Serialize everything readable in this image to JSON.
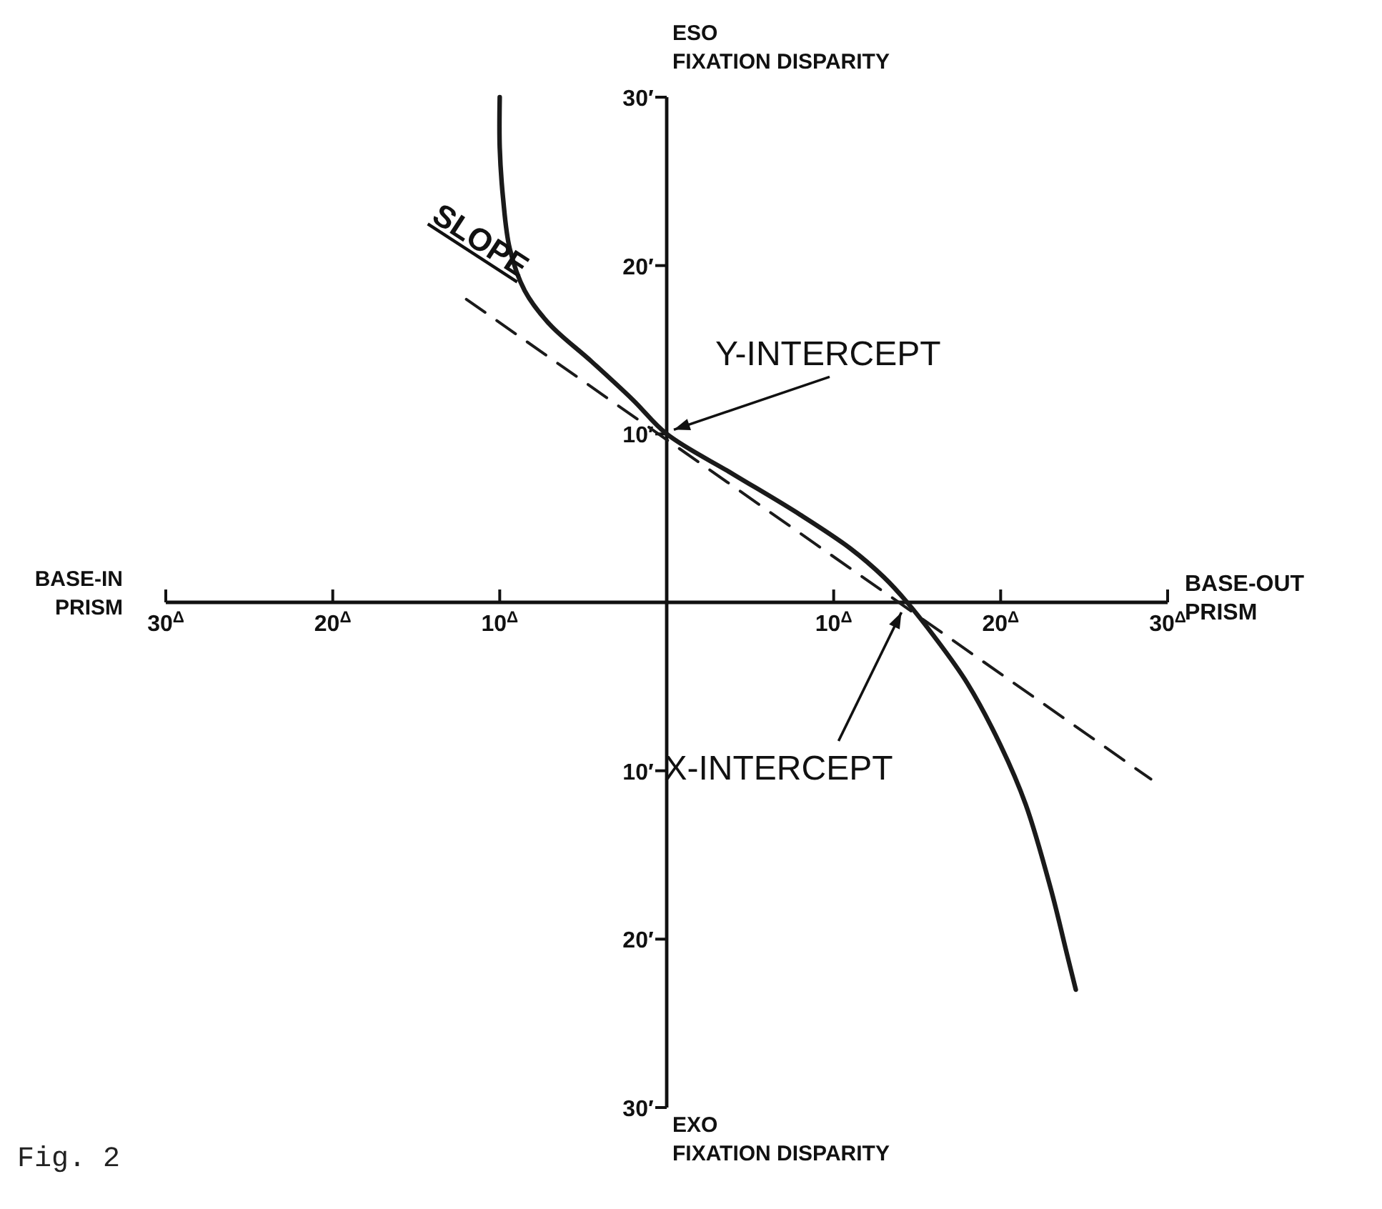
{
  "chart_data": {
    "type": "line",
    "xlabel": "BASE-OUT PRISM",
    "ylabel": "ESO FIXATION DISPARITY",
    "xlim": [
      -30,
      30
    ],
    "ylim": [
      -30,
      30
    ],
    "xticks": [
      {
        "value": -30,
        "label": "30$^{Δ}$"
      },
      {
        "value": -20,
        "label": "20$^{Δ}$"
      },
      {
        "value": -10,
        "label": "10$^{Δ}$"
      },
      {
        "value": 10,
        "label": "10$^{Δ}$"
      },
      {
        "value": 20,
        "label": "20$^{Δ}$"
      },
      {
        "value": 30,
        "label": "30$^{Δ}$"
      }
    ],
    "yticks": [
      {
        "value": 30,
        "label": "30′"
      },
      {
        "value": 20,
        "label": "20′"
      },
      {
        "value": 10,
        "label": "10′"
      },
      {
        "value": -10,
        "label": "10′"
      },
      {
        "value": -20,
        "label": "20′"
      },
      {
        "value": -30,
        "label": "30′"
      }
    ],
    "series": [
      {
        "color": "#1a1a1a",
        "line_style": "solid",
        "x": [
          -10,
          -10,
          -9.8,
          -9.4,
          -8.5,
          -7,
          -4.5,
          -2,
          0,
          4,
          8,
          11,
          13,
          14.4,
          16,
          18,
          20,
          21.5,
          23,
          24,
          24.5
        ],
        "values": [
          30,
          27,
          24,
          21,
          18.5,
          16.5,
          14.3,
          12,
          10,
          7.6,
          5.2,
          3.2,
          1.5,
          0,
          -2,
          -4.8,
          -8.5,
          -12,
          -17,
          -21,
          -23
        ]
      },
      {
        "color": "#1a1a1a",
        "line_style": "dashed",
        "x": [
          -12,
          29
        ],
        "values": [
          18,
          -10.5
        ]
      }
    ],
    "annotations": [
      {
        "text": "SLOPE",
        "x": -12,
        "y": 18
      },
      {
        "text": "Y-INTERCEPT",
        "x": 0,
        "y": 10
      },
      {
        "text": "X-INTERCEPT",
        "x": 14.4,
        "y": 0
      },
      "BASE-IN PRISM",
      "EXO FIXATION DISPARITY",
      "Fig. 2"
    ]
  }
}
